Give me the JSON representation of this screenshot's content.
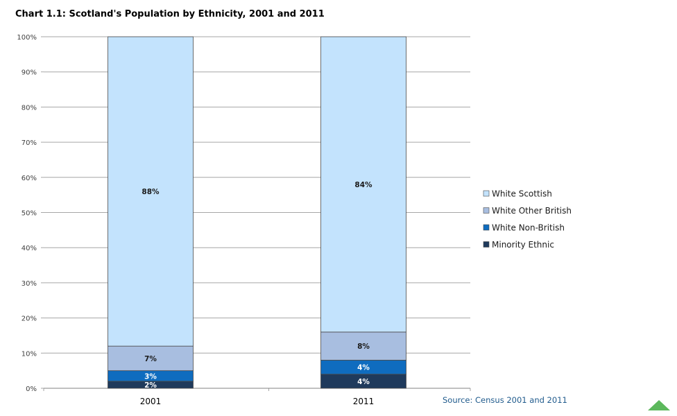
{
  "chart_data": {
    "type": "bar",
    "stacked": true,
    "title": "Chart 1.1: Scotland's Population by Ethnicity, 2001 and 2011",
    "categories": [
      "2001",
      "2011"
    ],
    "series": [
      {
        "name": "Minority Ethnic",
        "values": [
          2,
          4
        ],
        "labels": [
          "2%",
          "4%"
        ],
        "color": "#1f3a5c"
      },
      {
        "name": "White Non-British",
        "values": [
          3,
          4
        ],
        "labels": [
          "3%",
          "4%"
        ],
        "color": "#0f6cbf"
      },
      {
        "name": "White Other British",
        "values": [
          7,
          8
        ],
        "labels": [
          "7%",
          "8%"
        ],
        "color": "#a8bee0"
      },
      {
        "name": "White Scottish",
        "values": [
          88,
          84
        ],
        "labels": [
          "88%",
          "84%"
        ],
        "color": "#c3e3fd"
      }
    ],
    "ylim": [
      0,
      100
    ],
    "yticks": [
      0,
      10,
      20,
      30,
      40,
      50,
      60,
      70,
      80,
      90,
      100
    ],
    "ytick_labels": [
      "0%",
      "10%",
      "20%",
      "30%",
      "40%",
      "50%",
      "60%",
      "70%",
      "80%",
      "90%",
      "100%"
    ],
    "xlabel": "",
    "ylabel": "",
    "grid": true,
    "legend": {
      "position": "right",
      "entries": [
        "White Scottish",
        "White Other British",
        "White Non-British",
        "Minority Ethnic"
      ]
    }
  },
  "source": "Source: Census 2001 and 2011",
  "colors": {
    "grid": "#a6a6a6",
    "bar_outline": "#4a4a4a",
    "source": "#1f5a8c",
    "scroll_button": "#5cb85c"
  },
  "icons": {
    "scroll_top": "triangle-up-icon"
  }
}
